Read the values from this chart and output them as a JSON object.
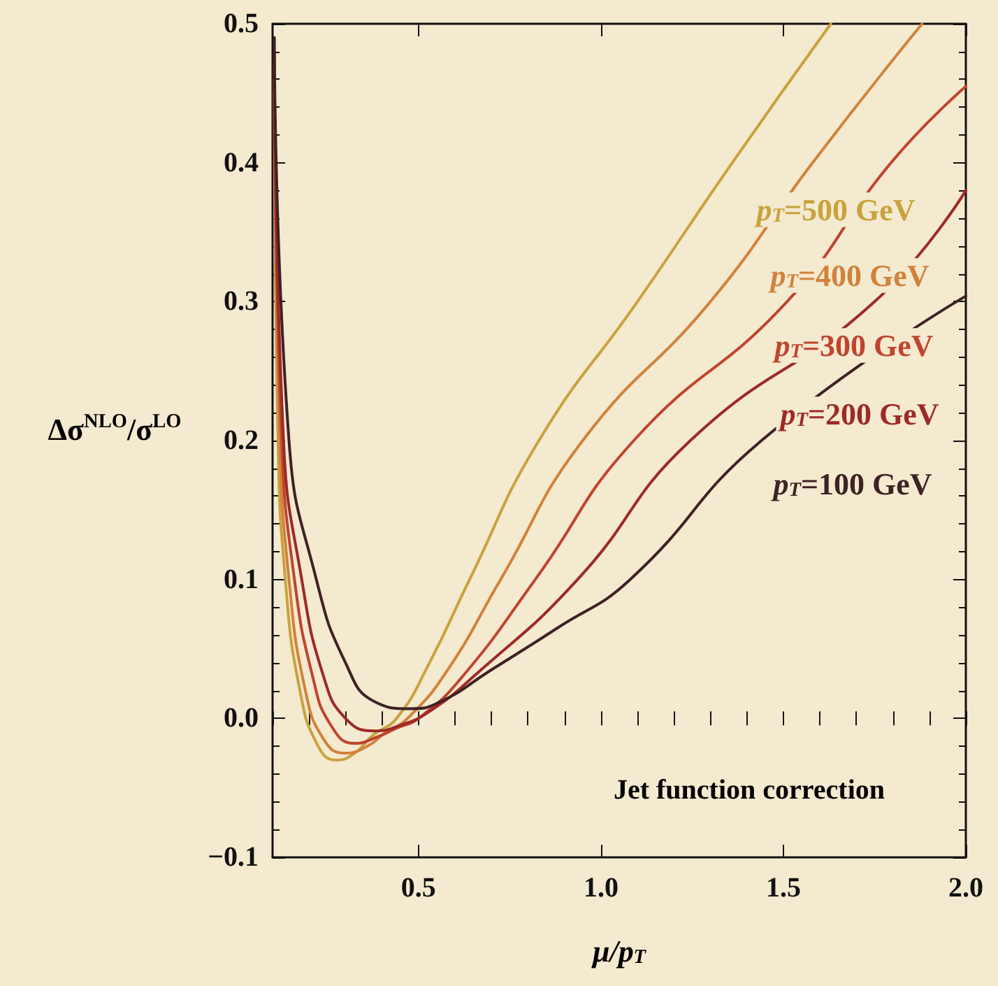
{
  "chart_data": {
    "type": "line",
    "xlabel": "μ/p$_{T}$",
    "ylabel": "Δσ$^{NLO}$/σ$^{LO}$",
    "annotations": [
      "Jet function correction"
    ],
    "xlim": [
      0.1,
      2.0
    ],
    "ylim": [
      -0.1,
      0.5
    ],
    "xticks": [
      0.5,
      {
        "value": 1,
        "label": "1.0"
      },
      1.5,
      {
        "value": 2,
        "label": "2.0"
      }
    ],
    "yticks": [
      {
        "value": -0.1,
        "label": "−0.1"
      },
      {
        "value": 0,
        "label": "0.0"
      },
      0.1,
      0.2,
      0.3,
      0.4,
      0.5
    ],
    "marker": "none",
    "line_style": "solid",
    "series": [
      {
        "name": "p$_{T}$=500 GeV",
        "color": "#c9a23e",
        "x": [
          0.105,
          0.115,
          0.135,
          0.175,
          0.225,
          0.275,
          0.325,
          0.375,
          0.44,
          0.53,
          0.64,
          0.83,
          1.1,
          1.36,
          1.63
        ],
        "values": [
          0.45,
          0.2,
          0.1,
          0.02,
          -0.02,
          -0.03,
          -0.025,
          -0.012,
          0.0,
          0.04,
          0.1,
          0.2,
          0.3,
          0.4,
          0.5
        ]
      },
      {
        "name": "p$_{T}$=400 GeV",
        "color": "#d2823a",
        "x": [
          0.105,
          0.12,
          0.145,
          0.19,
          0.24,
          0.298,
          0.36,
          0.41,
          0.47,
          0.58,
          0.725,
          0.95,
          1.3,
          1.58,
          1.88
        ],
        "values": [
          0.46,
          0.2,
          0.1,
          0.02,
          -0.015,
          -0.025,
          -0.02,
          -0.01,
          0.0,
          0.035,
          0.1,
          0.2,
          0.3,
          0.4,
          0.5
        ]
      },
      {
        "name": "p$_{T}$=300 GeV",
        "color": "#c0442f",
        "x": [
          0.105,
          0.125,
          0.16,
          0.21,
          0.26,
          0.325,
          0.39,
          0.44,
          0.5,
          0.62,
          0.82,
          1.09,
          1.51,
          1.795,
          2.0
        ],
        "values": [
          0.47,
          0.2,
          0.1,
          0.03,
          -0.005,
          -0.018,
          -0.013,
          -0.007,
          0.0,
          0.03,
          0.1,
          0.2,
          0.3,
          0.4,
          0.455
        ]
      },
      {
        "name": "p$_{T}$=200 GeV",
        "color": "#9c2a27",
        "x": [
          0.105,
          0.13,
          0.18,
          0.24,
          0.3,
          0.38,
          0.45,
          0.53,
          0.65,
          0.936,
          1.245,
          1.75,
          2.0
        ],
        "values": [
          0.48,
          0.2,
          0.1,
          0.03,
          0.0,
          -0.009,
          -0.005,
          0.005,
          0.03,
          0.1,
          0.2,
          0.3,
          0.38
        ]
      },
      {
        "name": "p$_{T}$=100 GeV",
        "color": "#3e2224",
        "x": [
          0.105,
          0.145,
          0.22,
          0.3,
          0.38,
          0.478,
          0.56,
          0.7,
          0.88,
          1.08,
          1.44,
          2.0
        ],
        "values": [
          0.49,
          0.2,
          0.1,
          0.04,
          0.012,
          0.007,
          0.012,
          0.035,
          0.065,
          0.1,
          0.2,
          0.304
        ]
      }
    ]
  }
}
